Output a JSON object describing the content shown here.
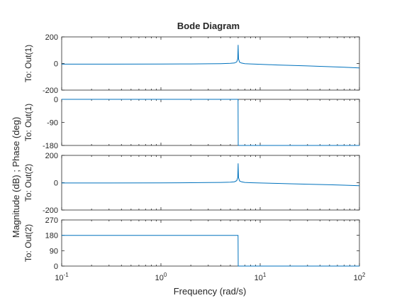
{
  "chart_data": {
    "type": "line",
    "title": "Bode Diagram",
    "xlabel": "Frequency  (rad/s)",
    "ylabel": "Magnitude (dB) ; Phase (deg)",
    "xscale": "log",
    "xlim": [
      0.1,
      100
    ],
    "x_tick_labels": [
      {
        "base": "10",
        "exp": "-1"
      },
      {
        "base": "10",
        "exp": "0"
      },
      {
        "base": "10",
        "exp": "1"
      },
      {
        "base": "10",
        "exp": "2"
      }
    ],
    "grid": false,
    "line_color": "#0072BD",
    "panels": [
      {
        "label": "To: Out(1)",
        "quantity": "magnitude",
        "ylim": [
          -200,
          200
        ],
        "y_ticks": [
          "200",
          "0",
          "-200"
        ],
        "x": [
          0.1,
          0.3,
          1,
          2,
          3,
          4,
          5,
          5.5,
          5.8,
          5.95,
          6.0,
          6.05,
          6.2,
          6.5,
          7,
          8,
          10,
          15,
          20,
          30,
          50,
          70,
          100
        ],
        "y": [
          -5,
          -5,
          -4,
          -3,
          -2,
          -1,
          1,
          4,
          12,
          35,
          140,
          35,
          10,
          3,
          -1,
          -3,
          -6,
          -11,
          -14,
          -18,
          -24,
          -28,
          -33
        ]
      },
      {
        "label": "To: Out(1)",
        "quantity": "phase",
        "ylim": [
          -180,
          0
        ],
        "y_ticks": [
          "0",
          "-90",
          "-180"
        ],
        "x": [
          0.1,
          5.99,
          6.0,
          6.01,
          100
        ],
        "y": [
          0,
          0,
          -90,
          -180,
          -180
        ]
      },
      {
        "label": "To: Out(2)",
        "quantity": "magnitude",
        "ylim": [
          -200,
          200
        ],
        "y_ticks": [
          "200",
          "0",
          "-200"
        ],
        "x": [
          0.1,
          0.3,
          1,
          2,
          3,
          4,
          5,
          5.5,
          5.8,
          5.95,
          6.0,
          6.05,
          6.2,
          6.5,
          7,
          8,
          10,
          15,
          20,
          30,
          50,
          70,
          100
        ],
        "y": [
          -2,
          -2,
          -1,
          0,
          1,
          2,
          4,
          7,
          15,
          38,
          142,
          38,
          13,
          6,
          2,
          0,
          -2,
          -5,
          -8,
          -11,
          -15,
          -18,
          -22
        ]
      },
      {
        "label": "To: Out(2)",
        "quantity": "phase",
        "ylim": [
          0,
          270
        ],
        "y_ticks": [
          "270",
          "180",
          "90",
          "0"
        ],
        "x": [
          0.1,
          5.99,
          6.0,
          6.01,
          100
        ],
        "y": [
          180,
          180,
          90,
          0,
          0
        ]
      }
    ]
  }
}
